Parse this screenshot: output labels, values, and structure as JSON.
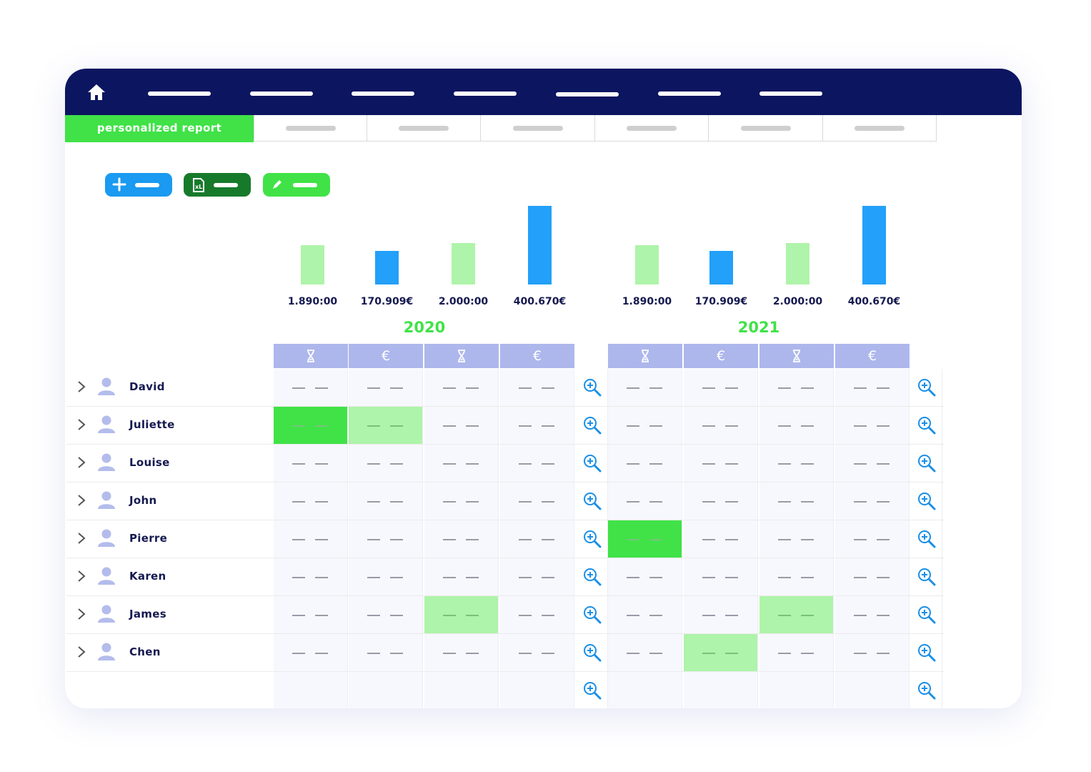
{
  "nav": {
    "home_icon": "home-icon",
    "items": [
      "",
      "",
      "",
      "",
      "",
      "",
      ""
    ]
  },
  "tabs": {
    "active_label": "personalized report",
    "others": [
      "",
      "",
      "",
      "",
      "",
      ""
    ]
  },
  "toolbar": {
    "buttons": [
      {
        "icon": "plus-icon",
        "color": "#1a9af0"
      },
      {
        "icon": "excel-icon",
        "color": "#177a2b"
      },
      {
        "icon": "pencil-icon",
        "color": "#40e247"
      }
    ]
  },
  "chart_data": {
    "type": "bar",
    "groups": [
      {
        "year": "2020",
        "labels": [
          "1.890:00",
          "170.909€",
          "2.000:00",
          "400.670€"
        ],
        "heights": [
          1890,
          170909,
          2000,
          400670
        ]
      },
      {
        "year": "2021",
        "labels": [
          "1.890:00",
          "170.909€",
          "2.000:00",
          "400.670€"
        ],
        "heights": [
          1890,
          170909,
          2000,
          400670
        ]
      }
    ],
    "colors": {
      "time": "#aef4aa",
      "money": "#23a0f9"
    }
  },
  "table": {
    "columns": [
      {
        "icon": "hourglass-icon"
      },
      {
        "label": "€"
      },
      {
        "icon": "hourglass-icon"
      },
      {
        "label": "€"
      },
      {
        "icon": "hourglass-icon"
      },
      {
        "label": "€"
      },
      {
        "icon": "hourglass-icon"
      },
      {
        "label": "€"
      }
    ],
    "rows": [
      {
        "name": "David",
        "highlights": [
          null,
          null,
          null,
          null,
          null,
          null,
          null,
          null
        ]
      },
      {
        "name": "Juliette",
        "highlights": [
          "strong",
          "light",
          null,
          null,
          null,
          null,
          null,
          null
        ]
      },
      {
        "name": "Louise",
        "highlights": [
          null,
          null,
          null,
          null,
          null,
          null,
          null,
          null
        ]
      },
      {
        "name": "John",
        "highlights": [
          null,
          null,
          null,
          null,
          null,
          null,
          null,
          null
        ]
      },
      {
        "name": "Pierre",
        "highlights": [
          null,
          null,
          null,
          null,
          "strong",
          null,
          null,
          null
        ]
      },
      {
        "name": "Karen",
        "highlights": [
          null,
          null,
          null,
          null,
          null,
          null,
          null,
          null
        ]
      },
      {
        "name": "James",
        "highlights": [
          null,
          null,
          "light",
          null,
          null,
          null,
          "light",
          null
        ]
      },
      {
        "name": "Chen",
        "highlights": [
          null,
          null,
          null,
          null,
          null,
          "light",
          null,
          null
        ]
      }
    ],
    "row_icons": {
      "expand": "chevron-right-icon",
      "user": "user-icon",
      "detail": "zoom-in-icon"
    }
  }
}
